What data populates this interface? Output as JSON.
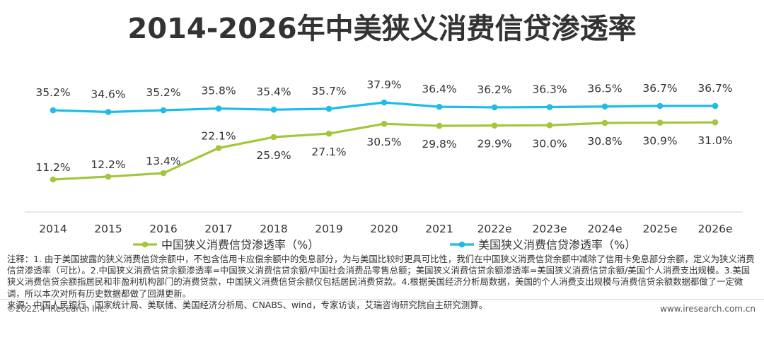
{
  "page": {
    "title": "2014-2026年中美狭义消费信贷渗透率",
    "notes": "注释：1. 由于美国披露的狭义消费信贷余额中，不包含信用卡应偿余额中的免息部分，为与美国比较时更具可比性，我们在中国狭义消费信贷余额中减除了信用卡免息部分余额，定义为狭义消费信贷渗透率（可比）。2.中国狭义消费信贷余额渗透率=中国狭义消费信贷余额/中国社会消费品零售总额；美国狭义消费信贷余额渗透率=美国狭义消费信贷余额/美国个人消费支出规模。3.美国狭义消费信贷余额指居民和非盈利机构部门的消费贷款，中国狭义消费信贷余额仅包括居民消费贷款。4.根据美国经济分析局数据，美国的个人消费支出规模与消费信贷余额数据都做了一定微调，所以本次对所有历史数据都做了回溯更新。",
    "source": "来源：中国人民银行、国家统计局、美联储、美国经济分析局、CNABS、wind，专家访谈，艾瑞咨询研究院自主研究测算。",
    "copyright": "©2022.4 iResearch Inc.",
    "website": "www.iresearch.com.cn"
  },
  "colors": {
    "china": "#a3c73a",
    "us": "#1ebce8",
    "axis": "#d0d0d0",
    "text": "#333333"
  },
  "chart_data": {
    "type": "line",
    "title": "2014-2026年中美狭义消费信贷渗透率",
    "categories": [
      "2014",
      "2015",
      "2016",
      "2017",
      "2018",
      "2019",
      "2020",
      "2021",
      "2022e",
      "2023e",
      "2024e",
      "2025e",
      "2026e"
    ],
    "series": [
      {
        "name": "中国狭义消费信贷渗透率（%）",
        "key": "china",
        "values": [
          11.2,
          12.2,
          13.4,
          22.1,
          25.9,
          27.1,
          30.5,
          29.8,
          29.9,
          30.0,
          30.8,
          30.9,
          31.0
        ],
        "labels": [
          "11.2%",
          "12.2%",
          "13.4%",
          "22.1%",
          "25.9%",
          "27.1%",
          "30.5%",
          "29.8%",
          "29.9%",
          "30.0%",
          "30.8%",
          "30.9%",
          "31.0%"
        ]
      },
      {
        "name": "美国狭义消费信贷渗透率（%）",
        "key": "us",
        "values": [
          35.2,
          34.6,
          35.2,
          35.8,
          35.4,
          35.7,
          37.9,
          36.4,
          36.2,
          36.3,
          36.5,
          36.7,
          36.7
        ],
        "labels": [
          "35.2%",
          "34.6%",
          "35.2%",
          "35.8%",
          "35.4%",
          "35.7%",
          "37.9%",
          "36.4%",
          "36.2%",
          "36.3%",
          "36.5%",
          "36.7%",
          "36.7%"
        ]
      }
    ],
    "legend": "bottom-center",
    "grid": false
  }
}
